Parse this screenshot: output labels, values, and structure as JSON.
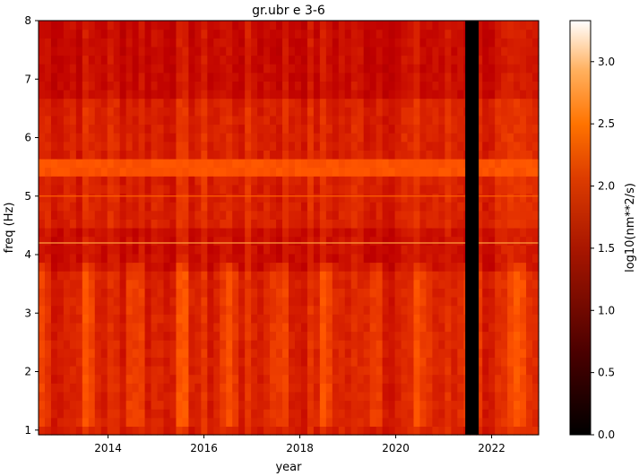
{
  "chart_data": {
    "type": "heatmap",
    "title": "gr.ubr e 3-6",
    "xlabel": "year",
    "ylabel": "freq (Hz)",
    "xlim": [
      2012.55,
      2022.98
    ],
    "ylim": [
      0.92,
      8.0
    ],
    "x_ticks": [
      2014,
      2016,
      2018,
      2020,
      2022
    ],
    "y_ticks": [
      1,
      2,
      3,
      4,
      5,
      6,
      7,
      8
    ],
    "colormap": "gist_heat",
    "colorbar": {
      "label": "log10(nm**2/s)",
      "range": [
        0.0,
        3.33
      ],
      "ticks": [
        "0.0",
        "0.5",
        "1.0",
        "1.5",
        "2.0",
        "2.5",
        "3.0"
      ]
    },
    "data_gap": {
      "x_start": 2021.45,
      "x_end": 2021.73,
      "value": 0.0
    },
    "typical_level": 1.9,
    "high_bands": [
      {
        "freq": [
          5.35,
          5.7
        ],
        "level": 2.2
      }
    ],
    "spectral_lines": [
      {
        "freq": 4.2,
        "level": 2.7
      },
      {
        "freq": 5.0,
        "level": 2.3
      }
    ],
    "seasonal_high_freq_range": [
      1.0,
      3.8
    ]
  }
}
